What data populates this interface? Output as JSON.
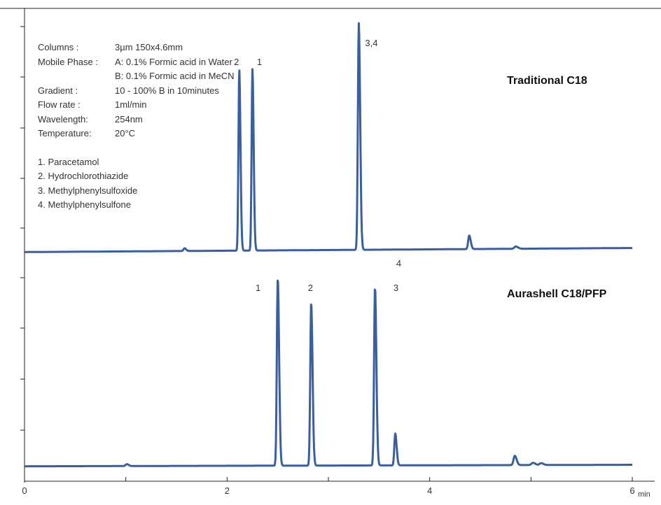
{
  "conditions": [
    {
      "label": "Columns :",
      "value": "3µm 150x4.6mm"
    },
    {
      "label": "Mobile Phase :",
      "value": "A: 0.1% Formic acid in Water"
    },
    {
      "label": "",
      "value": "B: 0.1% Formic acid in MeCN"
    },
    {
      "label": "Gradient :",
      "value": "10 - 100% B in 10minutes"
    },
    {
      "label": "Flow rate :",
      "value": "1ml/min"
    },
    {
      "label": "Wavelength:",
      "value": "254nm"
    },
    {
      "label": "Temperature:",
      "value": "20°C"
    }
  ],
  "compounds": [
    "1. Paracetamol",
    "2. Hydrochlorothiazide",
    "3. Methylphenylsulfoxide",
    "4. Methylphenylsulfone"
  ],
  "chart_data": {
    "type": "line",
    "xlabel": "min",
    "xlim": [
      0,
      6
    ],
    "x_ticks": [
      0,
      1,
      2,
      3,
      4,
      5,
      6
    ],
    "x_tick_labels": [
      "0",
      "",
      "2",
      "",
      "4",
      "",
      "6"
    ],
    "line_color": "#3a5fa0",
    "grid": false,
    "series": [
      {
        "name": "Traditional C18",
        "baseline": 0.005,
        "drift": 0.018,
        "peaks": [
          {
            "label": "2",
            "x": 2.12,
            "y": 0.8,
            "w": 0.008
          },
          {
            "label": "1",
            "x": 2.25,
            "y": 0.8,
            "w": 0.008
          },
          {
            "label": "3,4",
            "x": 3.3,
            "y": 1.0,
            "w": 0.009
          },
          {
            "label": "",
            "x": 4.39,
            "y": 0.06,
            "w": 0.01
          },
          {
            "label": "",
            "x": 1.58,
            "y": 0.012,
            "w": 0.01
          },
          {
            "label": "",
            "x": 4.85,
            "y": 0.01,
            "w": 0.015
          }
        ]
      },
      {
        "name": "Aurashell C18/PFP",
        "baseline": 0.005,
        "drift": 0.008,
        "peaks": [
          {
            "label": "1",
            "x": 2.5,
            "y": 1.0,
            "w": 0.009
          },
          {
            "label": "2",
            "x": 2.83,
            "y": 0.87,
            "w": 0.009
          },
          {
            "label": "3",
            "x": 3.46,
            "y": 0.95,
            "w": 0.009
          },
          {
            "label": "4",
            "x": 3.66,
            "y": 0.17,
            "w": 0.009
          },
          {
            "label": "",
            "x": 1.01,
            "y": 0.01,
            "w": 0.012
          },
          {
            "label": "",
            "x": 4.84,
            "y": 0.05,
            "w": 0.012
          },
          {
            "label": "",
            "x": 5.02,
            "y": 0.012,
            "w": 0.015
          },
          {
            "label": "",
            "x": 5.1,
            "y": 0.01,
            "w": 0.015
          }
        ]
      }
    ]
  }
}
